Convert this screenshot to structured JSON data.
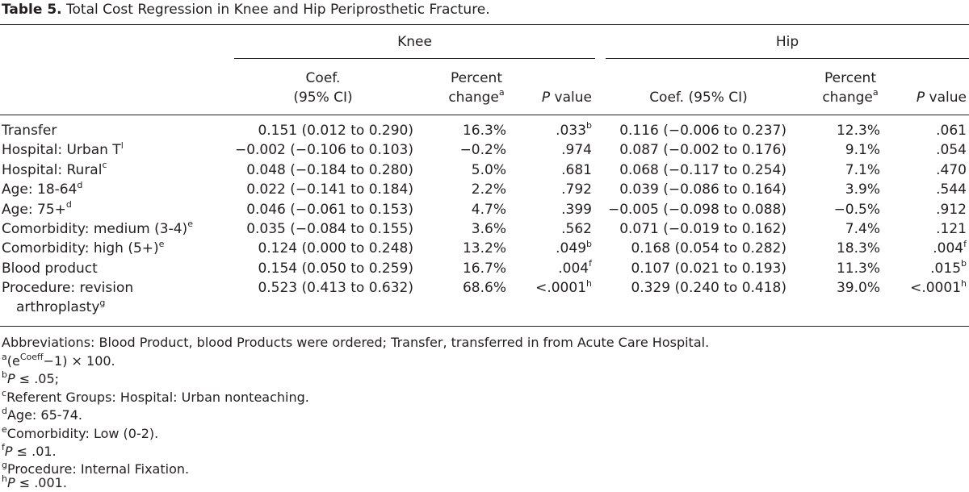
{
  "table": {
    "label": "Table 5.",
    "title": " Total Cost Regression in Knee and Hip Periprosthetic Fracture.",
    "groups": [
      "Knee",
      "Hip"
    ],
    "headers": {
      "knee_coef_1": "Coef.",
      "knee_coef_2": "(95% CI)",
      "knee_pct_1": "Percent",
      "knee_pct_2": "change",
      "knee_pct_sup": "a",
      "knee_p_italic": "P",
      "knee_p_rest": " value",
      "hip_coef": "Coef. (95% CI)",
      "hip_pct_1": "Percent",
      "hip_pct_2": "change",
      "hip_pct_sup": "a",
      "hip_p_italic": "P",
      "hip_p_rest": " value"
    },
    "rows": [
      {
        "label": "Transfer",
        "label_sup": "",
        "label2": "",
        "k_coef": "0.151 (0.012 to 0.290)",
        "k_pct": "16.3%",
        "k_p": ".033",
        "k_p_sup": "b",
        "h_coef": "0.116 (−0.006 to 0.237)",
        "h_pct": "12.3%",
        "h_p": ".061",
        "h_p_sup": ""
      },
      {
        "label": "Hospital: Urban T",
        "label_sup": "l",
        "label2": "",
        "k_coef": "−0.002 (−0.106 to 0.103)",
        "k_pct": "−0.2%",
        "k_p": ".974",
        "k_p_sup": "",
        "h_coef": "0.087 (−0.002 to 0.176)",
        "h_pct": "9.1%",
        "h_p": ".054",
        "h_p_sup": ""
      },
      {
        "label": "Hospital: Rural",
        "label_sup": "c",
        "label2": "",
        "k_coef": "0.048 (−0.184 to 0.280)",
        "k_pct": "5.0%",
        "k_p": ".681",
        "k_p_sup": "",
        "h_coef": "0.068 (−0.117 to 0.254)",
        "h_pct": "7.1%",
        "h_p": ".470",
        "h_p_sup": ""
      },
      {
        "label": "Age: 18-64",
        "label_sup": "d",
        "label2": "",
        "k_coef": "0.022 (−0.141 to 0.184)",
        "k_pct": "2.2%",
        "k_p": ".792",
        "k_p_sup": "",
        "h_coef": "0.039 (−0.086 to 0.164)",
        "h_pct": "3.9%",
        "h_p": ".544",
        "h_p_sup": ""
      },
      {
        "label": "Age: 75+",
        "label_sup": "d",
        "label2": "",
        "k_coef": "0.046 (−0.061 to 0.153)",
        "k_pct": "4.7%",
        "k_p": ".399",
        "k_p_sup": "",
        "h_coef": "−0.005 (−0.098 to 0.088)",
        "h_pct": "−0.5%",
        "h_p": ".912",
        "h_p_sup": ""
      },
      {
        "label": "Comorbidity: medium (3-4)",
        "label_sup": "e",
        "label2": "",
        "k_coef": "0.035 (−0.084 to 0.155)",
        "k_pct": "3.6%",
        "k_p": ".562",
        "k_p_sup": "",
        "h_coef": "0.071 (−0.019 to 0.162)",
        "h_pct": "7.4%",
        "h_p": ".121",
        "h_p_sup": ""
      },
      {
        "label": "Comorbidity: high (5+)",
        "label_sup": "e",
        "label2": "",
        "k_coef": "0.124 (0.000 to 0.248)",
        "k_pct": "13.2%",
        "k_p": ".049",
        "k_p_sup": "b",
        "h_coef": "0.168 (0.054 to 0.282)",
        "h_pct": "18.3%",
        "h_p": ".004",
        "h_p_sup": "f"
      },
      {
        "label": "Blood product",
        "label_sup": "",
        "label2": "",
        "k_coef": "0.154 (0.050 to 0.259)",
        "k_pct": "16.7%",
        "k_p": ".004",
        "k_p_sup": "f",
        "h_coef": "0.107 (0.021 to 0.193)",
        "h_pct": "11.3%",
        "h_p": ".015",
        "h_p_sup": "b"
      },
      {
        "label": "Procedure: revision",
        "label_sup": "",
        "label2": "arthroplasty",
        "label2_sup": "g",
        "k_coef": "0.523 (0.413 to 0.632)",
        "k_pct": "68.6%",
        "k_p": "<.0001",
        "k_p_sup": "h",
        "h_coef": "0.329 (0.240 to 0.418)",
        "h_pct": "39.0%",
        "h_p": "<.0001",
        "h_p_sup": "h"
      }
    ],
    "footnotes": {
      "abbrev": "Abbreviations: Blood Product, blood Products were ordered; Transfer, transferred in from Acute Care Hospital.",
      "a_sup": "a",
      "a_pre": "(e",
      "a_exp": "Coeff",
      "a_post": "−1) × 100.",
      "b_sup": "b",
      "b_italic": "P",
      "b_rest": " ≤ .05;",
      "c_sup": "c",
      "c_text": "Referent Groups: Hospital: Urban nonteaching.",
      "d_sup": "d",
      "d_text": "Age: 65-74.",
      "e_sup": "e",
      "e_text": "Comorbidity: Low (0-2).",
      "f_sup": "f",
      "f_italic": "P",
      "f_rest": " ≤ .01.",
      "g_sup": "g",
      "g_text": "Procedure: Internal Fixation.",
      "h_sup": "h",
      "h_italic": "P",
      "h_rest": " ≤ .001."
    }
  }
}
